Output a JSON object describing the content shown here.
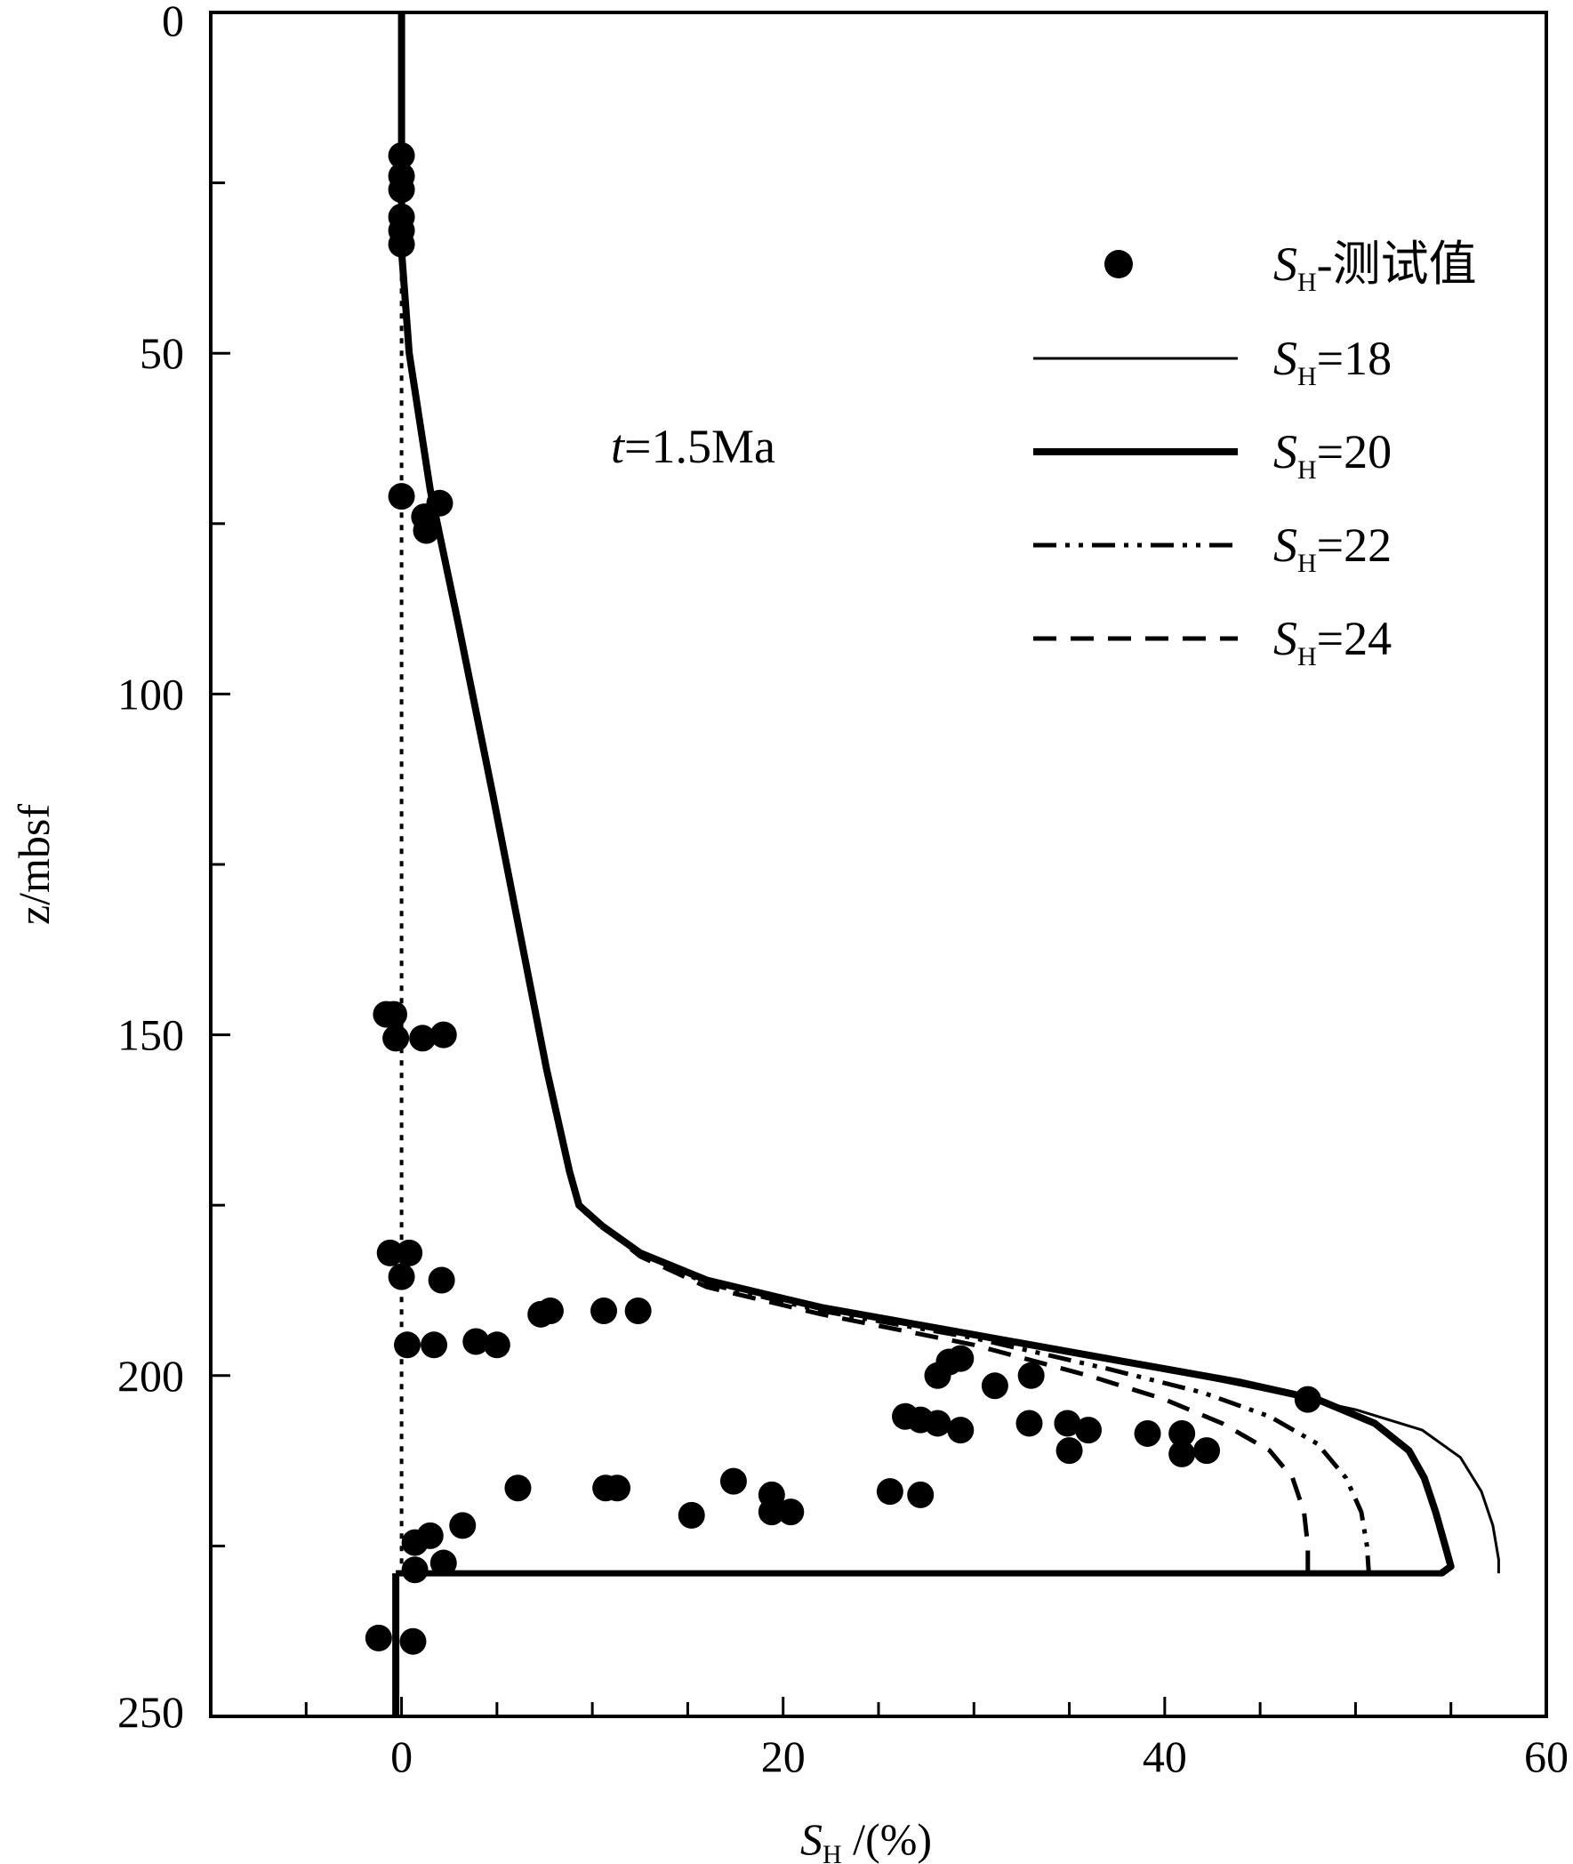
{
  "chart_data": {
    "type": "line",
    "xlabel": {
      "symbol": "S",
      "sub": "H",
      "rest": " /(%)"
    },
    "ylabel": "z/mbsf",
    "xlim": [
      -10,
      60
    ],
    "ylim": [
      0,
      250
    ],
    "y_inverted": true,
    "x_ticks": [
      0,
      20,
      40,
      60
    ],
    "y_ticks": [
      0,
      50,
      100,
      150,
      200,
      250
    ],
    "annotation": {
      "italic": "t",
      "rest": "=1.5Ma"
    },
    "legend": {
      "position": "top-right",
      "entries": [
        {
          "series": "measured",
          "symbol": "S",
          "sub": "H",
          "rest": "-测试值"
        },
        {
          "series": "sh18",
          "symbol": "S",
          "sub": "H",
          "rest": "=18"
        },
        {
          "series": "sh20",
          "symbol": "S",
          "sub": "H",
          "rest": "=20"
        },
        {
          "series": "sh22",
          "symbol": "S",
          "sub": "H",
          "rest": "=22"
        },
        {
          "series": "sh24",
          "symbol": "S",
          "sub": "H",
          "rest": "=24"
        }
      ]
    },
    "shared_upper_profile": [
      [
        0,
        0
      ],
      [
        0,
        35
      ],
      [
        0.4,
        50
      ],
      [
        1.5,
        70
      ],
      [
        3,
        90
      ],
      [
        4.8,
        115
      ],
      [
        6.2,
        135
      ],
      [
        7.6,
        155
      ],
      [
        8.8,
        170
      ],
      [
        9.3,
        175
      ],
      [
        10.5,
        178
      ]
    ],
    "series": [
      {
        "key": "measured",
        "kind": "scatter",
        "points": [
          [
            0,
            21
          ],
          [
            0,
            24
          ],
          [
            0,
            26
          ],
          [
            0,
            30
          ],
          [
            0,
            32
          ],
          [
            0,
            34
          ],
          [
            0,
            71
          ],
          [
            1.2,
            74
          ],
          [
            2,
            72
          ],
          [
            1.3,
            76
          ],
          [
            -0.8,
            147
          ],
          [
            -0.4,
            147
          ],
          [
            -0.3,
            150.5
          ],
          [
            1.1,
            150.5
          ],
          [
            2.2,
            150
          ],
          [
            -0.6,
            182
          ],
          [
            0.4,
            182
          ],
          [
            0,
            185.5
          ],
          [
            2.1,
            186
          ],
          [
            7.3,
            191
          ],
          [
            7.8,
            190.5
          ],
          [
            10.6,
            190.5
          ],
          [
            12.4,
            190.5
          ],
          [
            0.3,
            195.5
          ],
          [
            1.7,
            195.5
          ],
          [
            3.9,
            195
          ],
          [
            5,
            195.5
          ],
          [
            28.7,
            198
          ],
          [
            29.3,
            197.5
          ],
          [
            28.1,
            200
          ],
          [
            31.1,
            201.5
          ],
          [
            33,
            200
          ],
          [
            47.5,
            203.5
          ],
          [
            26.4,
            206
          ],
          [
            27.2,
            206.5
          ],
          [
            28.1,
            207
          ],
          [
            29.3,
            208
          ],
          [
            32.9,
            207
          ],
          [
            34.9,
            207
          ],
          [
            36,
            208
          ],
          [
            35,
            211
          ],
          [
            39.1,
            208.5
          ],
          [
            40.9,
            208.5
          ],
          [
            40.9,
            211.5
          ],
          [
            42.2,
            211
          ],
          [
            6.1,
            216.5
          ],
          [
            10.7,
            216.5
          ],
          [
            11.3,
            216.5
          ],
          [
            17.4,
            215.5
          ],
          [
            19.4,
            217.5
          ],
          [
            19.4,
            220
          ],
          [
            20.4,
            220
          ],
          [
            15.2,
            220.5
          ],
          [
            25.6,
            217
          ],
          [
            27.2,
            217.5
          ],
          [
            3.2,
            222
          ],
          [
            1.5,
            223.5
          ],
          [
            0.7,
            224.5
          ],
          [
            0.7,
            228.5
          ],
          [
            2.2,
            227.5
          ],
          [
            -1.2,
            238.5
          ],
          [
            0.6,
            239
          ]
        ]
      },
      {
        "key": "sh18",
        "kind": "line",
        "style": "thin",
        "profile": [
          [
            10.5,
            178
          ],
          [
            12.5,
            182
          ],
          [
            16,
            186
          ],
          [
            22,
            190
          ],
          [
            30,
            194
          ],
          [
            38,
            198
          ],
          [
            45,
            202
          ],
          [
            50,
            205
          ],
          [
            53.5,
            208
          ],
          [
            55.5,
            212
          ],
          [
            56.6,
            217
          ],
          [
            57.2,
            222
          ],
          [
            57.5,
            227
          ],
          [
            57.5,
            229
          ]
        ]
      },
      {
        "key": "sh20",
        "kind": "line",
        "style": "thick",
        "profile": [
          [
            10.5,
            178
          ],
          [
            12.5,
            182
          ],
          [
            16,
            186
          ],
          [
            22,
            190
          ],
          [
            30,
            194
          ],
          [
            38,
            198
          ],
          [
            44,
            201
          ],
          [
            48,
            203.5
          ],
          [
            51,
            207
          ],
          [
            52.8,
            211
          ],
          [
            53.6,
            215
          ],
          [
            54.2,
            220
          ],
          [
            54.7,
            225
          ],
          [
            55,
            228
          ],
          [
            54.5,
            229
          ]
        ]
      },
      {
        "key": "sh22",
        "kind": "line",
        "style": "dashdotdot",
        "profile": [
          [
            10.5,
            178
          ],
          [
            12.5,
            182
          ],
          [
            16,
            186.5
          ],
          [
            22,
            190.5
          ],
          [
            30,
            194.5
          ],
          [
            37,
            199
          ],
          [
            42,
            202.5
          ],
          [
            45.5,
            206
          ],
          [
            48,
            210
          ],
          [
            49.5,
            215
          ],
          [
            50.3,
            220
          ],
          [
            50.6,
            225
          ],
          [
            50.7,
            229
          ]
        ]
      },
      {
        "key": "sh24",
        "kind": "line",
        "style": "dashed",
        "profile": [
          [
            10.5,
            178
          ],
          [
            12.5,
            182.5
          ],
          [
            16,
            187
          ],
          [
            22,
            191
          ],
          [
            30,
            195.5
          ],
          [
            36,
            200
          ],
          [
            40,
            203.5
          ],
          [
            43,
            207
          ],
          [
            45.5,
            211
          ],
          [
            46.7,
            215
          ],
          [
            47.3,
            220
          ],
          [
            47.5,
            225
          ],
          [
            47.5,
            229
          ]
        ]
      }
    ],
    "baseline_profile": {
      "bottom_line": [
        [
          -0.3,
          229
        ],
        [
          54.6,
          229
        ]
      ],
      "lower_segment": [
        [
          -0.3,
          229
        ],
        [
          -0.3,
          250
        ]
      ],
      "dotted_reference": [
        [
          0,
          35
        ],
        [
          0,
          229
        ]
      ]
    }
  }
}
